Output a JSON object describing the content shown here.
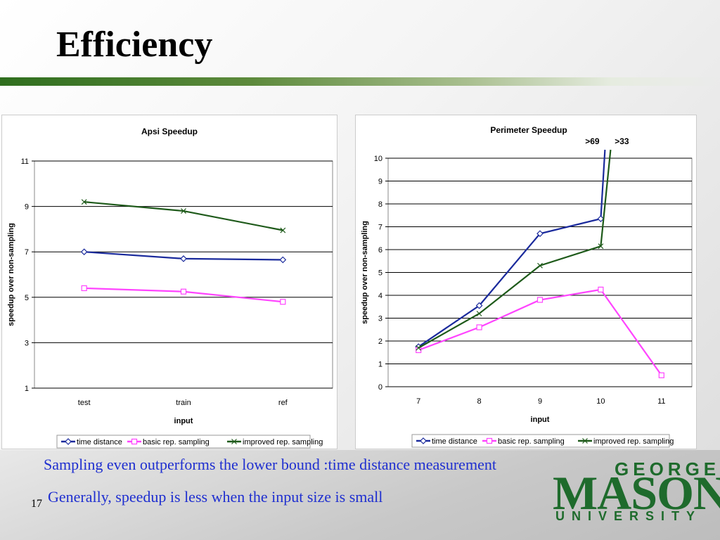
{
  "slide": {
    "title": "Efficiency",
    "bullets": [
      "Sampling even outperforms the lower bound :time distance measurement",
      "Generally, speedup is less when the input size is small"
    ],
    "page_number": "17",
    "logo": {
      "line1": "GEORGE",
      "line2": "MASON",
      "line3": "UNIVERSITY"
    },
    "colors": {
      "title_bar": "#2f6e1e",
      "bullet_text": "#1f2fd0",
      "logo": "#1e6b2c"
    }
  },
  "chart_data": [
    {
      "type": "line",
      "title": "Apsi Speedup",
      "xlabel": "input",
      "ylabel": "speedup over non-sampling",
      "categories": [
        "test",
        "train",
        "ref"
      ],
      "ylim": [
        1,
        11
      ],
      "yticks": [
        "1",
        "3",
        "5",
        "7",
        "9",
        "11"
      ],
      "grid": true,
      "legend": "bottom",
      "series": [
        {
          "name": "time distance",
          "values": [
            7.0,
            6.7,
            6.65
          ],
          "color": "#1a2a9c",
          "marker": "diamond"
        },
        {
          "name": "basic rep. sampling",
          "values": [
            5.4,
            5.25,
            4.8
          ],
          "color": "#ff44ff",
          "marker": "square"
        },
        {
          "name": "improved rep. sampling",
          "values": [
            9.2,
            8.8,
            7.95
          ],
          "color": "#1e5a1a",
          "marker": "x"
        }
      ]
    },
    {
      "type": "line",
      "title": "Perimeter Speedup",
      "xlabel": "input",
      "ylabel": "speedup over non-sampling",
      "categories": [
        "7",
        "8",
        "9",
        "10",
        "11"
      ],
      "ylim": [
        0,
        10
      ],
      "yticks": [
        "0",
        "1",
        "2",
        "3",
        "4",
        "5",
        "6",
        "7",
        "8",
        "9",
        "10"
      ],
      "grid": true,
      "legend": "bottom",
      "annotations": [
        ">69",
        ">33"
      ],
      "series": [
        {
          "name": "time distance",
          "values": [
            1.75,
            3.55,
            6.7,
            7.35,
            null
          ],
          "color": "#1a2a9c",
          "marker": "diamond",
          "offscale_label": ">69"
        },
        {
          "name": "basic rep. sampling",
          "values": [
            1.6,
            2.6,
            3.8,
            4.25,
            0.5
          ],
          "color": "#ff44ff",
          "marker": "square"
        },
        {
          "name": "improved rep. sampling",
          "values": [
            1.7,
            3.2,
            5.3,
            6.15,
            null
          ],
          "color": "#1e5a1a",
          "marker": "x",
          "offscale_label": ">33"
        }
      ]
    }
  ]
}
